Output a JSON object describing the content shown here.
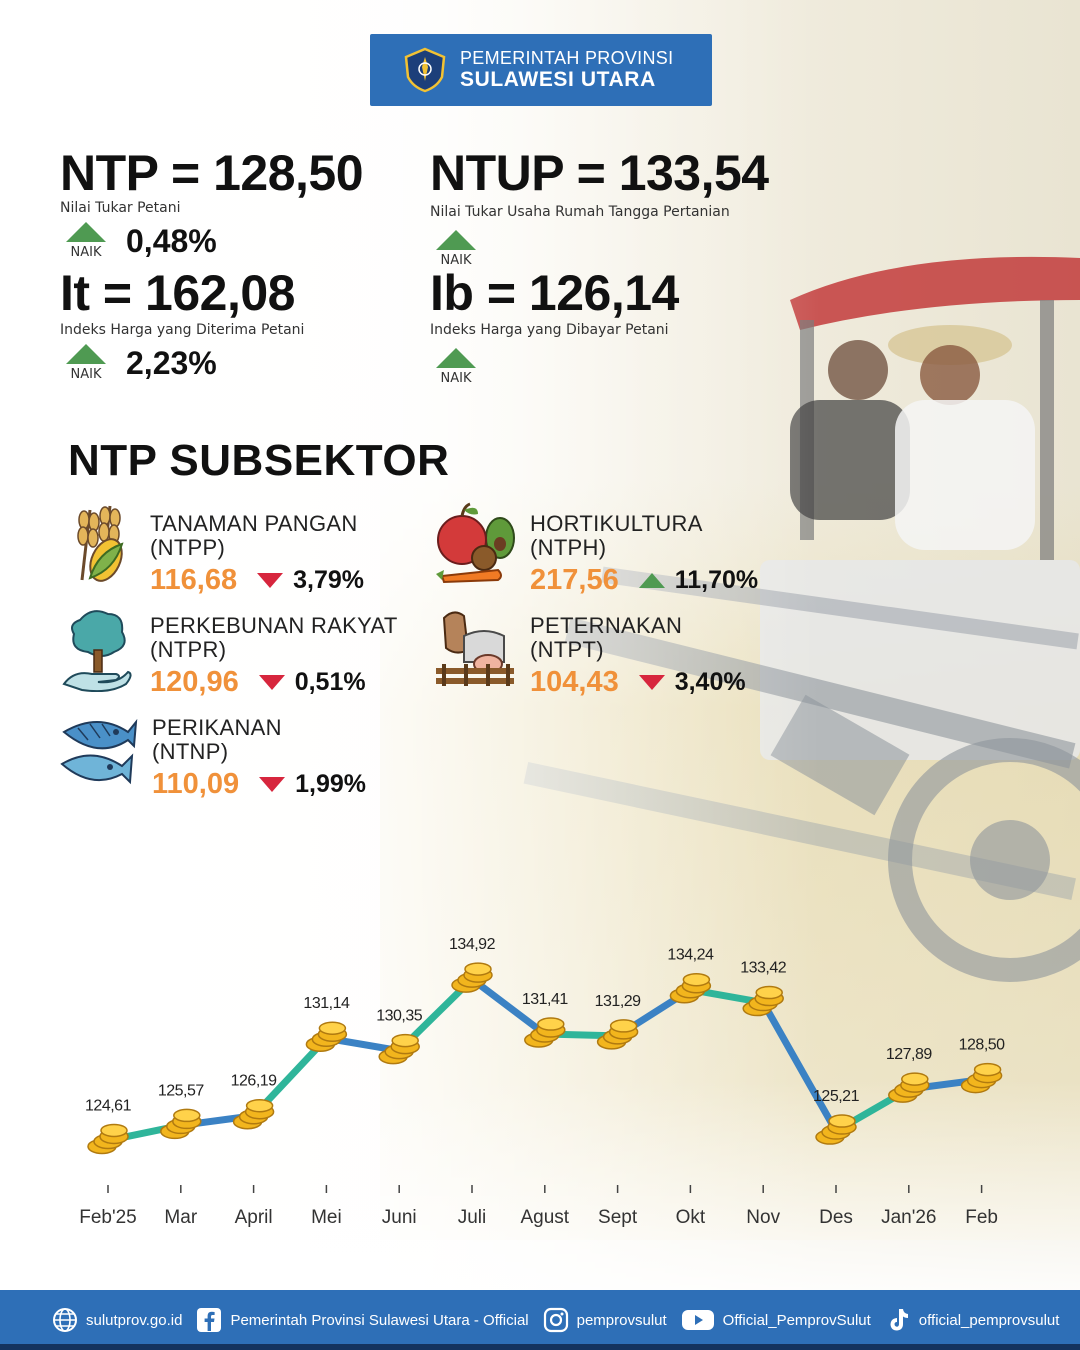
{
  "header": {
    "line1": "PEMERINTAH PROVINSI",
    "line2": "SULAWESI UTARA"
  },
  "indicators": [
    {
      "id": "ntp",
      "label": "NTP = 128,50",
      "desc": "Nilai Tukar Petani",
      "status": "NAIK",
      "change": "0,48%"
    },
    {
      "id": "ntup",
      "label": "NTUP = 133,54",
      "desc": "Nilai Tukar Usaha Rumah Tangga Pertanian",
      "status": "NAIK",
      "change": ""
    },
    {
      "id": "it",
      "label": "It = 162,08",
      "desc": "Indeks Harga yang Diterima Petani",
      "status": "NAIK",
      "change": "2,23%"
    },
    {
      "id": "ib",
      "label": "Ib = 126,14",
      "desc": "Indeks Harga yang Dibayar Petani",
      "status": "NAIK",
      "change": ""
    }
  ],
  "subsektor": {
    "title": "NTP SUBSEKTOR",
    "items": [
      {
        "name": "TANAMAN PANGAN",
        "code": "(NTPP)",
        "value": "116,68",
        "direction": "down",
        "change": "3,79%",
        "icon": "wheat-corn-icon"
      },
      {
        "name": "HORTIKULTURA",
        "code": "(NTPH)",
        "value": "217,56",
        "direction": "up",
        "change": "11,70%",
        "icon": "fruit-vegetable-icon"
      },
      {
        "name": "PERKEBUNAN RAKYAT",
        "code": "(NTPR)",
        "value": "120,96",
        "direction": "down",
        "change": "0,51%",
        "icon": "tree-hand-icon"
      },
      {
        "name": "PETERNAKAN",
        "code": "(NTPT)",
        "value": "104,43",
        "direction": "down",
        "change": "3,40%",
        "icon": "livestock-icon"
      },
      {
        "name": "PERIKANAN",
        "code": "(NTNP)",
        "value": "110,09",
        "direction": "down",
        "change": "1,99%",
        "icon": "fish-icon"
      }
    ]
  },
  "chart_data": {
    "type": "line",
    "title": "",
    "categories": [
      "Feb'25",
      "Mar",
      "April",
      "Mei",
      "Juni",
      "Juli",
      "Agust",
      "Sept",
      "Okt",
      "Nov",
      "Des",
      "Jan'26",
      "Feb"
    ],
    "values": [
      124.61,
      125.57,
      126.19,
      131.14,
      130.35,
      134.92,
      131.41,
      131.29,
      134.24,
      133.42,
      125.21,
      127.89,
      128.5
    ],
    "value_labels": [
      "124,61",
      "125,57",
      "126,19",
      "131,14",
      "130,35",
      "134,92",
      "131,41",
      "131,29",
      "134,24",
      "133,42",
      "125,21",
      "127,89",
      "128,50"
    ],
    "colors": {
      "line_teal": "#2fb59a",
      "line_blue": "#3b82c4",
      "coin": "#f2b51d"
    },
    "ylim": [
      124,
      135.5
    ],
    "grid": false,
    "legend": "none"
  },
  "footer": {
    "website": "sulutprov.go.id",
    "facebook": "Pemerintah Provinsi Sulawesi Utara - Official",
    "instagram": "pemprovsulut",
    "youtube": "Official_PemprovSulut",
    "tiktok": "official_pemprovsulut"
  },
  "colors": {
    "brand_blue": "#2e6fb7",
    "accent_orange": "#f0913a",
    "up_green": "#4f9a52",
    "down_red": "#d7263d"
  }
}
